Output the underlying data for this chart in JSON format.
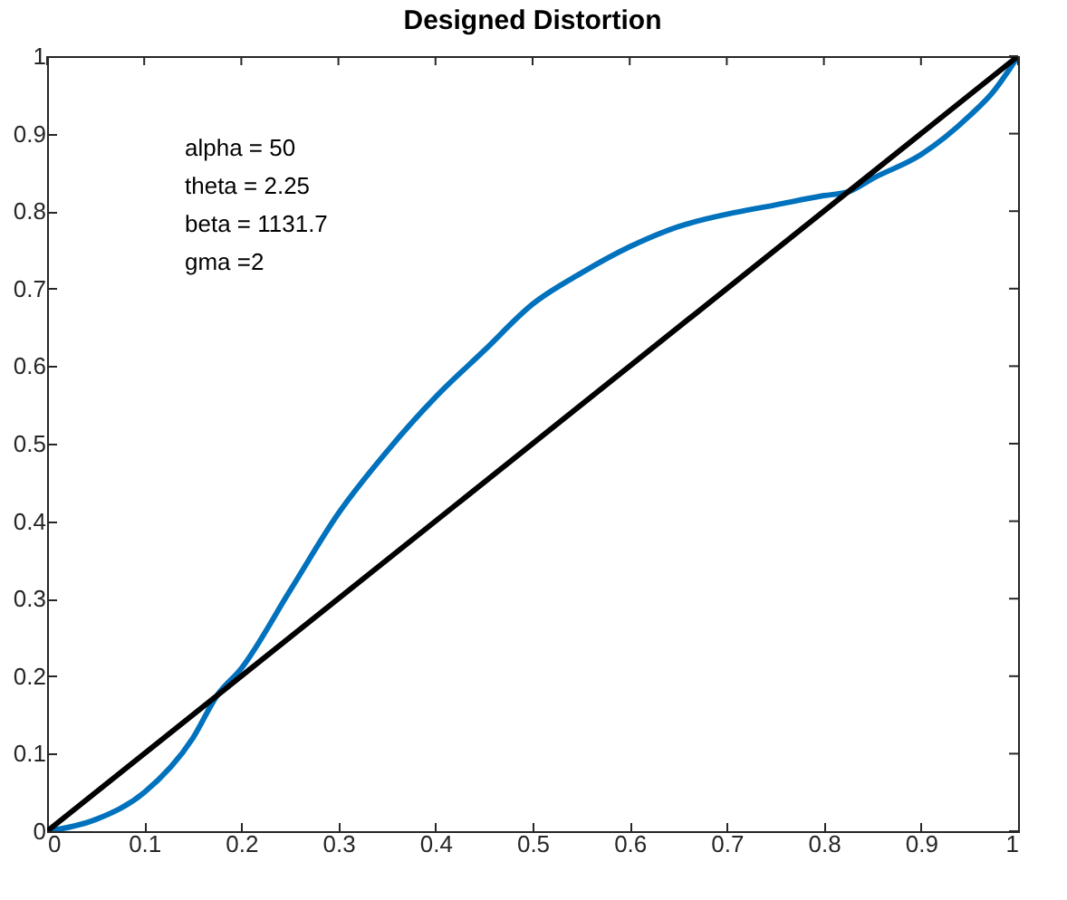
{
  "chart_data": {
    "type": "line",
    "title": "Designed Distortion",
    "xlim": [
      0,
      1
    ],
    "ylim": [
      0,
      1
    ],
    "xticks": [
      0,
      0.1,
      0.2,
      0.3,
      0.4,
      0.5,
      0.6,
      0.7,
      0.8,
      0.9,
      1
    ],
    "yticks": [
      0,
      0.1,
      0.2,
      0.3,
      0.4,
      0.5,
      0.6,
      0.7,
      0.8,
      0.9,
      1
    ],
    "grid": false,
    "marker": "none",
    "line_style": "solid",
    "annotations": [
      "alpha = 50",
      "theta = 2.25",
      "beta = 1131.7",
      "gma =2"
    ],
    "series": [
      {
        "color": "#0072bd",
        "x": [
          0,
          0.05,
          0.1,
          0.15,
          0.175,
          0.2,
          0.25,
          0.3,
          0.35,
          0.4,
          0.45,
          0.5,
          0.55,
          0.6,
          0.65,
          0.7,
          0.75,
          0.8,
          0.825,
          0.85,
          0.9,
          0.95,
          0.975,
          1
        ],
        "values": [
          0,
          0.015,
          0.05,
          0.12,
          0.175,
          0.21,
          0.31,
          0.41,
          0.49,
          0.56,
          0.62,
          0.68,
          0.72,
          0.754,
          0.78,
          0.796,
          0.808,
          0.82,
          0.825,
          0.842,
          0.873,
          0.923,
          0.955,
          1
        ]
      },
      {
        "color": "#000000",
        "x": [
          0,
          1
        ],
        "values": [
          0,
          1
        ]
      }
    ]
  }
}
